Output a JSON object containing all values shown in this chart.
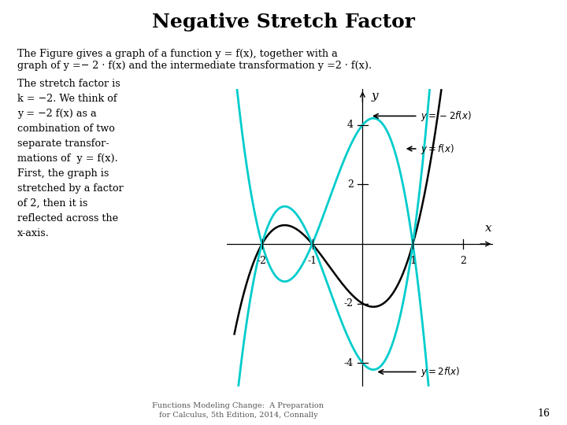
{
  "title": "Negative Stretch Factor",
  "title_fontsize": 18,
  "title_fontweight": "bold",
  "background_color": "#ffffff",
  "graph_xlim": [
    -2.7,
    2.6
  ],
  "graph_ylim": [
    -4.8,
    5.2
  ],
  "x_ticks": [
    -2,
    -1,
    1,
    2
  ],
  "y_ticks": [
    -4,
    -2,
    2,
    4
  ],
  "curve_color_fx": "#000000",
  "curve_color_transformed": "#00cccc",
  "footer_text": "Functions Modeling Change:  A Preparation\nfor Calculus, 5th Edition, 2014, Connally",
  "page_number": "16",
  "body_text_line1": "The Figure gives a graph of a function y = f(x), together with a",
  "body_text_line2": "graph of y =− 2 · f(x) and the intermediate transformation y =2 · f(x).",
  "body_text_block": "The stretch factor is\nk = −2. We think of\ny = −2 f(x) as a\ncombination of two\nseparate transfor-\nmations of  y = f(x).\nFirst, the graph is\nstretched by a factor\nof 2, then it is\nreflected across the\nx-axis."
}
